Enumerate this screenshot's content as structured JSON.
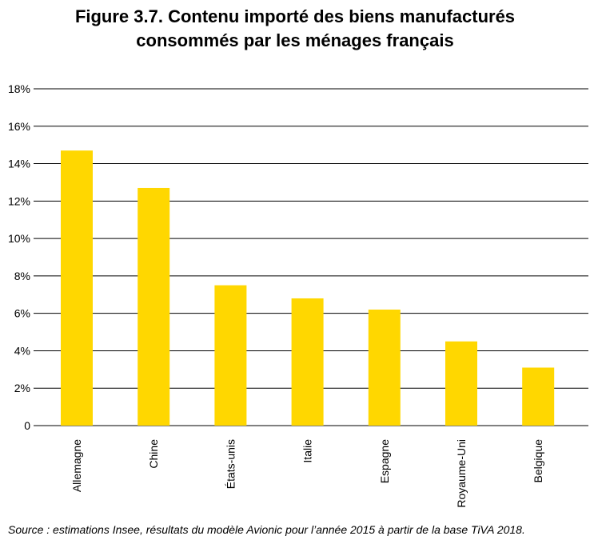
{
  "chart_data": {
    "type": "bar",
    "title_lines": [
      "Figure 3.7. Contenu importé des biens manufacturés",
      "consommés par les ménages français"
    ],
    "categories": [
      "Allemagne",
      "Chine",
      "États-unis",
      "Italie",
      "Espagne",
      "Royaume-Uni",
      "Belgique"
    ],
    "values": [
      14.7,
      12.7,
      7.5,
      6.8,
      6.2,
      4.5,
      3.1
    ],
    "ylim": [
      0,
      18
    ],
    "yticks": [
      0,
      2,
      4,
      6,
      8,
      10,
      12,
      14,
      16,
      18
    ],
    "ytick_labels": [
      "0",
      "2%",
      "4%",
      "6%",
      "8%",
      "10%",
      "12%",
      "14%",
      "16%",
      "18%"
    ],
    "grid": true,
    "xlabel": "",
    "ylabel": "",
    "bar_color": "#FFD700",
    "source": "Source : estimations Insee, résultats du modèle Avionic pour l’année 2015 à partir de la base TiVA 2018."
  }
}
